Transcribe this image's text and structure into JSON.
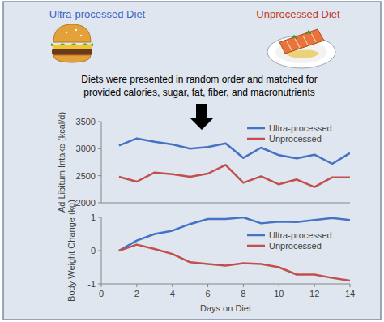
{
  "header": {
    "left_label": "Ultra-processed Diet",
    "right_label": "Unprocessed Diet",
    "description": [
      "Diets were presented in random order and matched for",
      "provided calories, sugar, fat, fiber, and macronutrients"
    ]
  },
  "chart_data": [
    {
      "type": "line",
      "y_label": "Ad Libitum Intake (kcal/d)",
      "x": [
        1,
        2,
        3,
        4,
        5,
        6,
        7,
        8,
        9,
        10,
        11,
        12,
        13,
        14
      ],
      "series": [
        {
          "name": "Ultra-processed",
          "color": "#4472c4",
          "values": [
            3060,
            3190,
            3130,
            3080,
            3000,
            3030,
            3100,
            2830,
            3020,
            2880,
            2820,
            2890,
            2720,
            2920
          ]
        },
        {
          "name": "Unprocessed",
          "color": "#c0504d",
          "values": [
            2480,
            2390,
            2560,
            2530,
            2480,
            2540,
            2700,
            2370,
            2490,
            2340,
            2430,
            2290,
            2470,
            2470
          ]
        }
      ],
      "xlim": [
        0,
        14
      ],
      "ylim": [
        2000,
        3500
      ],
      "yticks": [
        2000,
        2500,
        3000,
        3500
      ],
      "tick_labels": "y",
      "legend": "upper right"
    },
    {
      "type": "line",
      "x_label": "Days on Diet",
      "y_label": "Body Weight Change (kg)",
      "x": [
        1,
        2,
        3,
        4,
        5,
        6,
        7,
        8,
        9,
        10,
        11,
        12,
        13,
        14
      ],
      "series": [
        {
          "name": "Ultra-processed",
          "color": "#4472c4",
          "values": [
            0,
            0.3,
            0.5,
            0.6,
            0.8,
            0.95,
            0.95,
            1.0,
            0.82,
            0.87,
            0.86,
            0.92,
            0.98,
            0.92
          ]
        },
        {
          "name": "Unprocessed",
          "color": "#c0504d",
          "values": [
            0,
            0.18,
            0.05,
            -0.1,
            -0.35,
            -0.4,
            -0.45,
            -0.38,
            -0.4,
            -0.5,
            -0.72,
            -0.72,
            -0.82,
            -0.9
          ]
        }
      ],
      "xlim": [
        0,
        14
      ],
      "ylim": [
        -1,
        1
      ],
      "xticks": [
        0,
        2,
        4,
        6,
        8,
        10,
        12,
        14
      ],
      "yticks": [
        -1,
        0,
        1
      ],
      "legend": "center right"
    }
  ]
}
